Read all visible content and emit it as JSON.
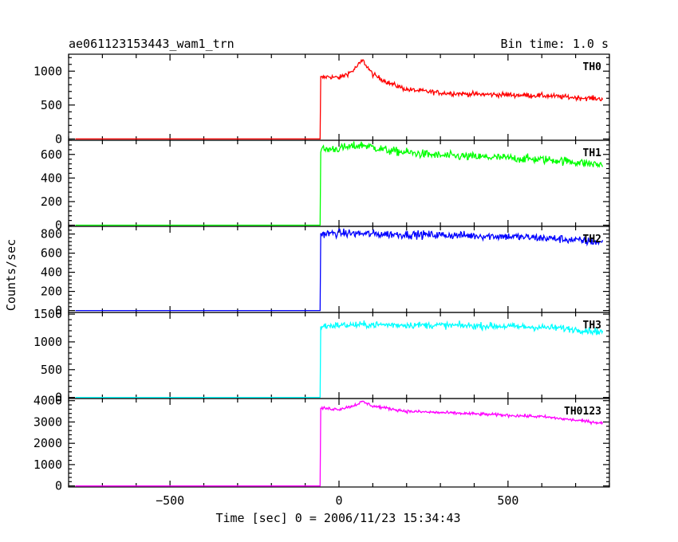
{
  "header": {
    "title": "ae061123153443_wam1_trn",
    "bin_time": "Bin time: 1.0 s"
  },
  "axes": {
    "ylabel": "Counts/sec",
    "xlabel": "Time [sec] 0 = 2006/11/23 15:34:43"
  },
  "chart_data": {
    "type": "line",
    "title": "ae061123153443_wam1_trn",
    "xlabel": "Time [sec] 0 = 2006/11/23 15:34:43",
    "ylabel": "Counts/sec",
    "xlim": [
      -800,
      800
    ],
    "x_ticks": [
      -500,
      0,
      500
    ],
    "trigger_time": -55,
    "data_range": [
      -780,
      780
    ],
    "grid": false,
    "panels": [
      {
        "name": "TH0",
        "color": "#ff0000",
        "ylim": [
          -20,
          1250
        ],
        "ticks": [
          0,
          500,
          1000
        ],
        "series": [
          {
            "x": -780,
            "y": 0
          },
          {
            "x": -56,
            "y": 0
          },
          {
            "x": -55,
            "y": 900
          },
          {
            "x": -30,
            "y": 920
          },
          {
            "x": 0,
            "y": 900
          },
          {
            "x": 20,
            "y": 950
          },
          {
            "x": 40,
            "y": 1000
          },
          {
            "x": 70,
            "y": 1160
          },
          {
            "x": 100,
            "y": 950
          },
          {
            "x": 150,
            "y": 820
          },
          {
            "x": 200,
            "y": 730
          },
          {
            "x": 300,
            "y": 680
          },
          {
            "x": 400,
            "y": 660
          },
          {
            "x": 500,
            "y": 650
          },
          {
            "x": 600,
            "y": 640
          },
          {
            "x": 700,
            "y": 610
          },
          {
            "x": 780,
            "y": 590
          }
        ],
        "noise": 30
      },
      {
        "name": "TH1",
        "color": "#00ff00",
        "ylim": [
          -10,
          720
        ],
        "ticks": [
          0,
          200,
          400,
          600
        ],
        "series": [
          {
            "x": -780,
            "y": 0
          },
          {
            "x": -56,
            "y": 0
          },
          {
            "x": -55,
            "y": 640
          },
          {
            "x": 0,
            "y": 650
          },
          {
            "x": 70,
            "y": 680
          },
          {
            "x": 150,
            "y": 630
          },
          {
            "x": 300,
            "y": 590
          },
          {
            "x": 500,
            "y": 570
          },
          {
            "x": 650,
            "y": 550
          },
          {
            "x": 780,
            "y": 510
          }
        ],
        "noise": 30
      },
      {
        "name": "TH2",
        "color": "#0000ff",
        "ylim": [
          -20,
          880
        ],
        "ticks": [
          0,
          200,
          400,
          600,
          800
        ],
        "series": [
          {
            "x": -780,
            "y": 0
          },
          {
            "x": -56,
            "y": 0
          },
          {
            "x": -55,
            "y": 800
          },
          {
            "x": 0,
            "y": 810
          },
          {
            "x": 100,
            "y": 800
          },
          {
            "x": 300,
            "y": 790
          },
          {
            "x": 500,
            "y": 775
          },
          {
            "x": 650,
            "y": 750
          },
          {
            "x": 780,
            "y": 710
          }
        ],
        "noise": 35
      },
      {
        "name": "TH3",
        "color": "#00ffff",
        "ylim": [
          -20,
          1530
        ],
        "ticks": [
          0,
          500,
          1000,
          1500
        ],
        "series": [
          {
            "x": -780,
            "y": 0
          },
          {
            "x": -56,
            "y": 0
          },
          {
            "x": -55,
            "y": 1280
          },
          {
            "x": 0,
            "y": 1300
          },
          {
            "x": 100,
            "y": 1310
          },
          {
            "x": 300,
            "y": 1300
          },
          {
            "x": 500,
            "y": 1280
          },
          {
            "x": 650,
            "y": 1250
          },
          {
            "x": 780,
            "y": 1180
          }
        ],
        "noise": 50
      },
      {
        "name": "TH0123",
        "color": "#ff00ff",
        "ylim": [
          -50,
          4100
        ],
        "ticks": [
          0,
          1000,
          2000,
          3000,
          4000
        ],
        "series": [
          {
            "x": -780,
            "y": 0
          },
          {
            "x": -56,
            "y": 0
          },
          {
            "x": -55,
            "y": 3650
          },
          {
            "x": 0,
            "y": 3600
          },
          {
            "x": 40,
            "y": 3750
          },
          {
            "x": 70,
            "y": 3950
          },
          {
            "x": 100,
            "y": 3750
          },
          {
            "x": 200,
            "y": 3500
          },
          {
            "x": 400,
            "y": 3380
          },
          {
            "x": 600,
            "y": 3250
          },
          {
            "x": 780,
            "y": 2950
          }
        ],
        "noise": 60
      }
    ]
  }
}
